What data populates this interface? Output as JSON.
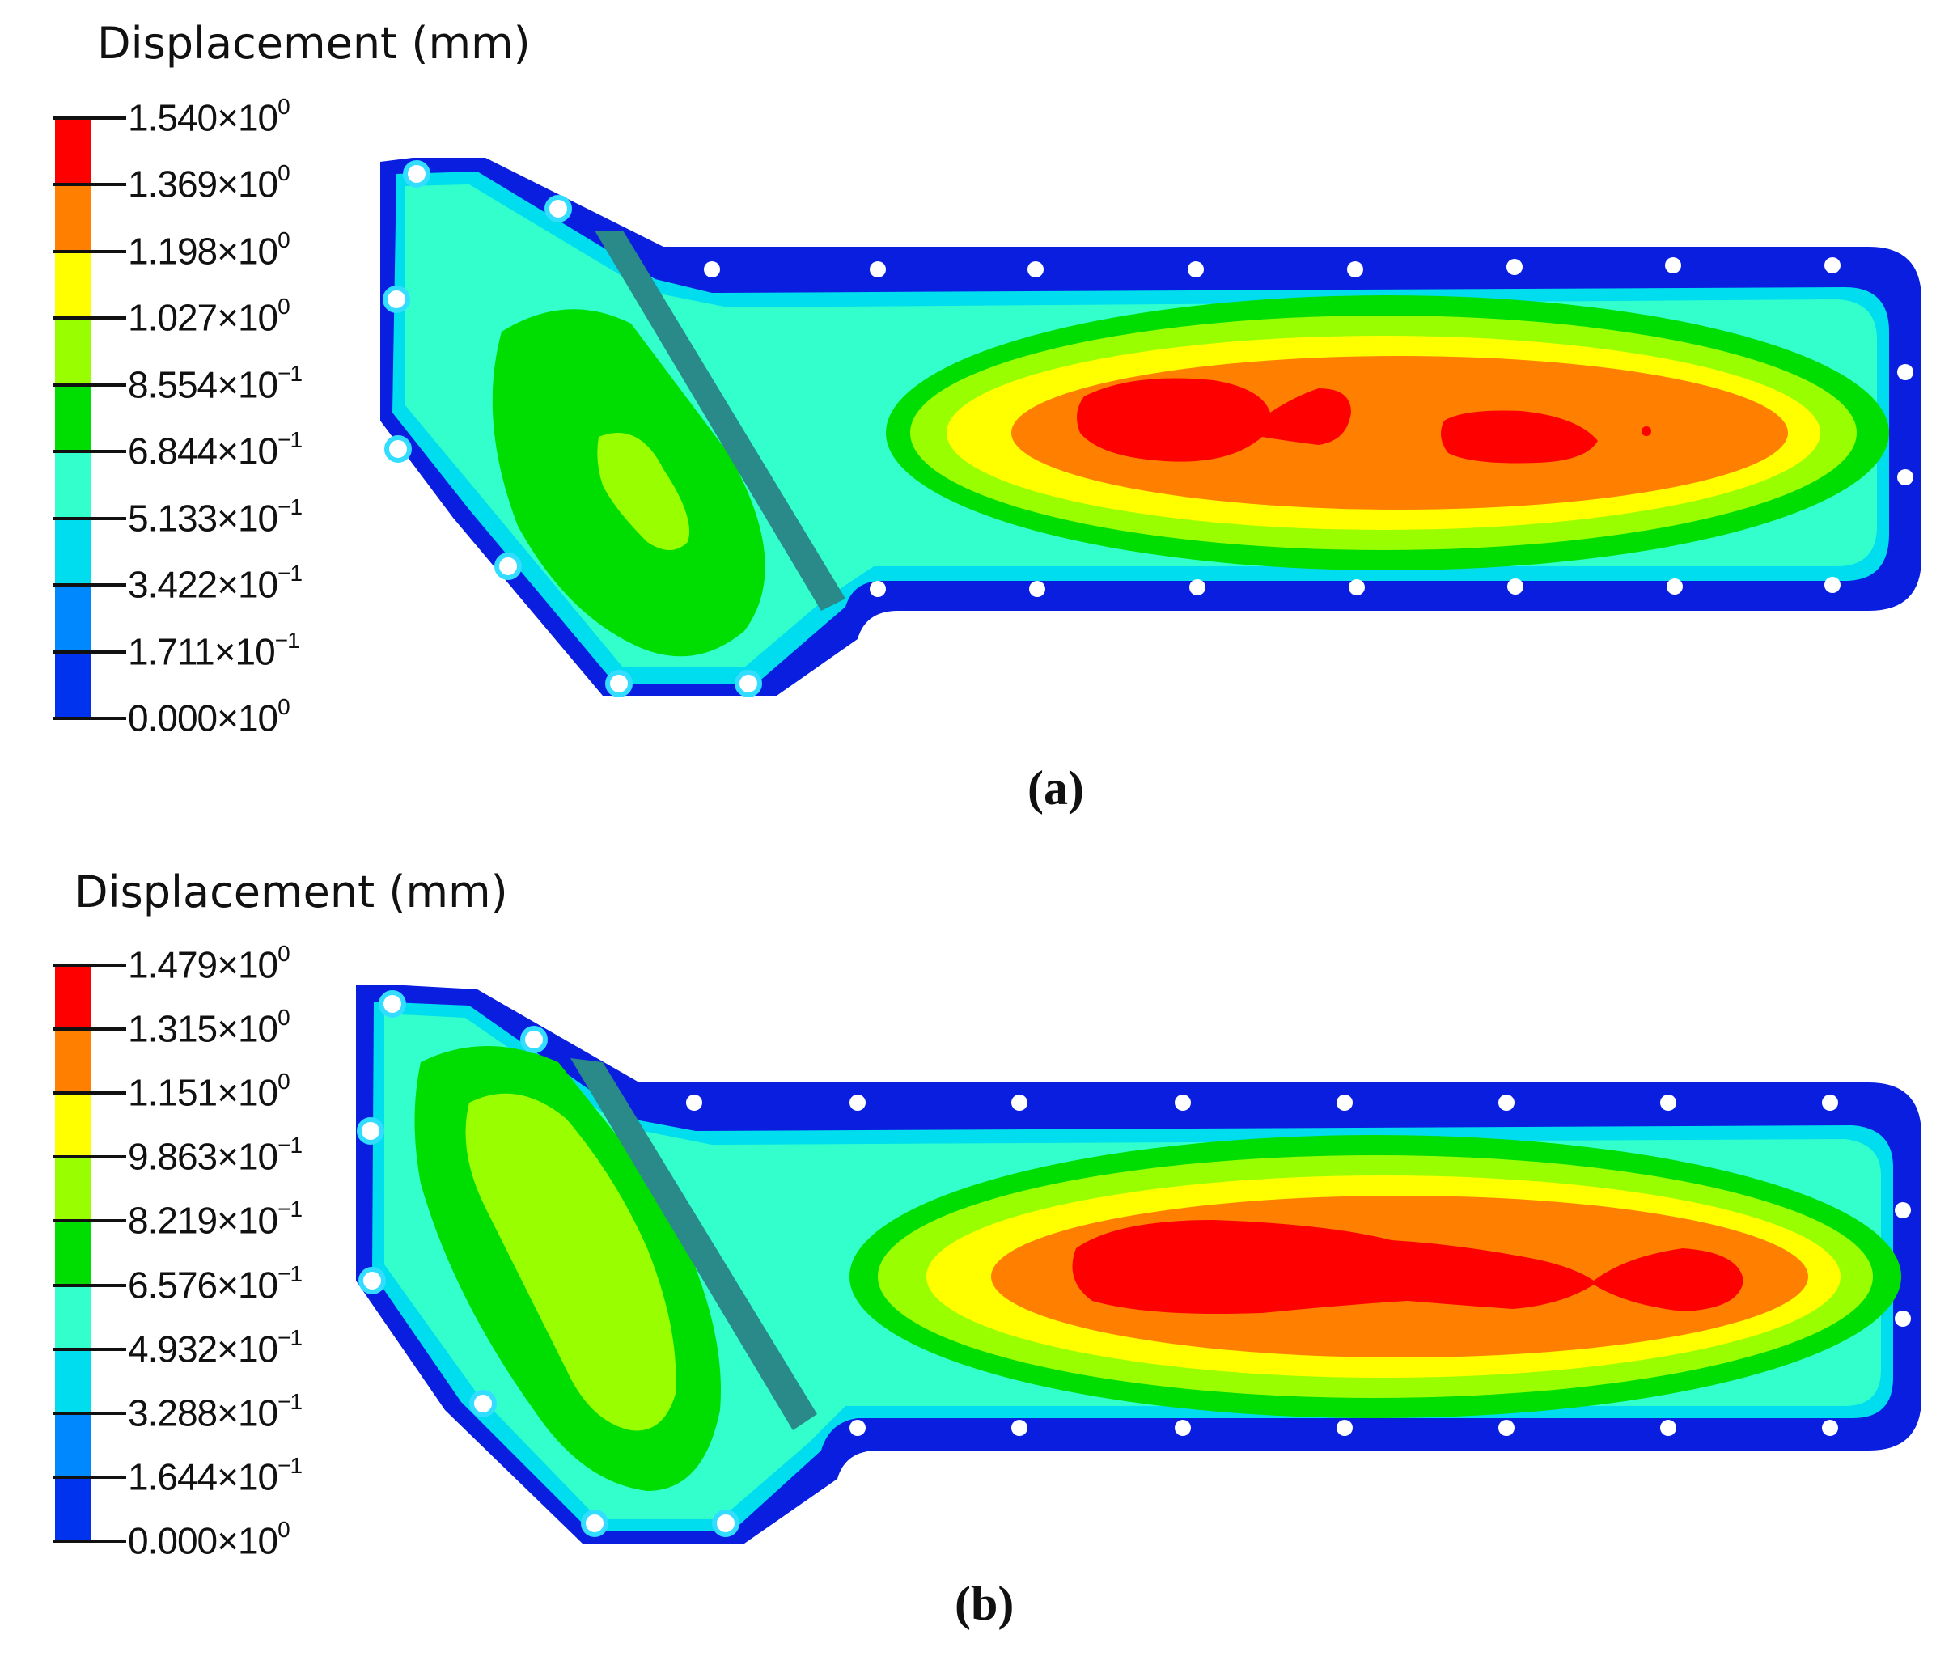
{
  "panels": [
    {
      "id": "a",
      "label": "(a)",
      "legend": {
        "title": "Displacement (mm)",
        "ticks": [
          {
            "mantissa": "1.540",
            "exp": "0"
          },
          {
            "mantissa": "1.369",
            "exp": "0"
          },
          {
            "mantissa": "1.198",
            "exp": "0"
          },
          {
            "mantissa": "1.027",
            "exp": "0"
          },
          {
            "mantissa": "8.554",
            "exp": "−1"
          },
          {
            "mantissa": "6.844",
            "exp": "−1"
          },
          {
            "mantissa": "5.133",
            "exp": "−1"
          },
          {
            "mantissa": "3.422",
            "exp": "−1"
          },
          {
            "mantissa": "1.711",
            "exp": "−1"
          },
          {
            "mantissa": "0.000",
            "exp": "0"
          }
        ]
      }
    },
    {
      "id": "b",
      "label": "(b)",
      "legend": {
        "title": "Displacement (mm)",
        "ticks": [
          {
            "mantissa": "1.479",
            "exp": "0"
          },
          {
            "mantissa": "1.315",
            "exp": "0"
          },
          {
            "mantissa": "1.151",
            "exp": "0"
          },
          {
            "mantissa": "9.863",
            "exp": "−1"
          },
          {
            "mantissa": "8.219",
            "exp": "−1"
          },
          {
            "mantissa": "6.576",
            "exp": "−1"
          },
          {
            "mantissa": "4.932",
            "exp": "−1"
          },
          {
            "mantissa": "3.288",
            "exp": "−1"
          },
          {
            "mantissa": "1.644",
            "exp": "−1"
          },
          {
            "mantissa": "0.000",
            "exp": "0"
          }
        ]
      }
    }
  ],
  "colors": {
    "contour_levels": [
      "#ff0000",
      "#ff7f00",
      "#ffff00",
      "#99ff00",
      "#00dd00",
      "#33ffcc",
      "#00ddee",
      "#0088ff",
      "#0033ee"
    ],
    "flange": "#0a1ee0",
    "bolt_hole": "#ffffff",
    "bolt_ring": "#33ddff",
    "rib": "#2a8a8a"
  }
}
